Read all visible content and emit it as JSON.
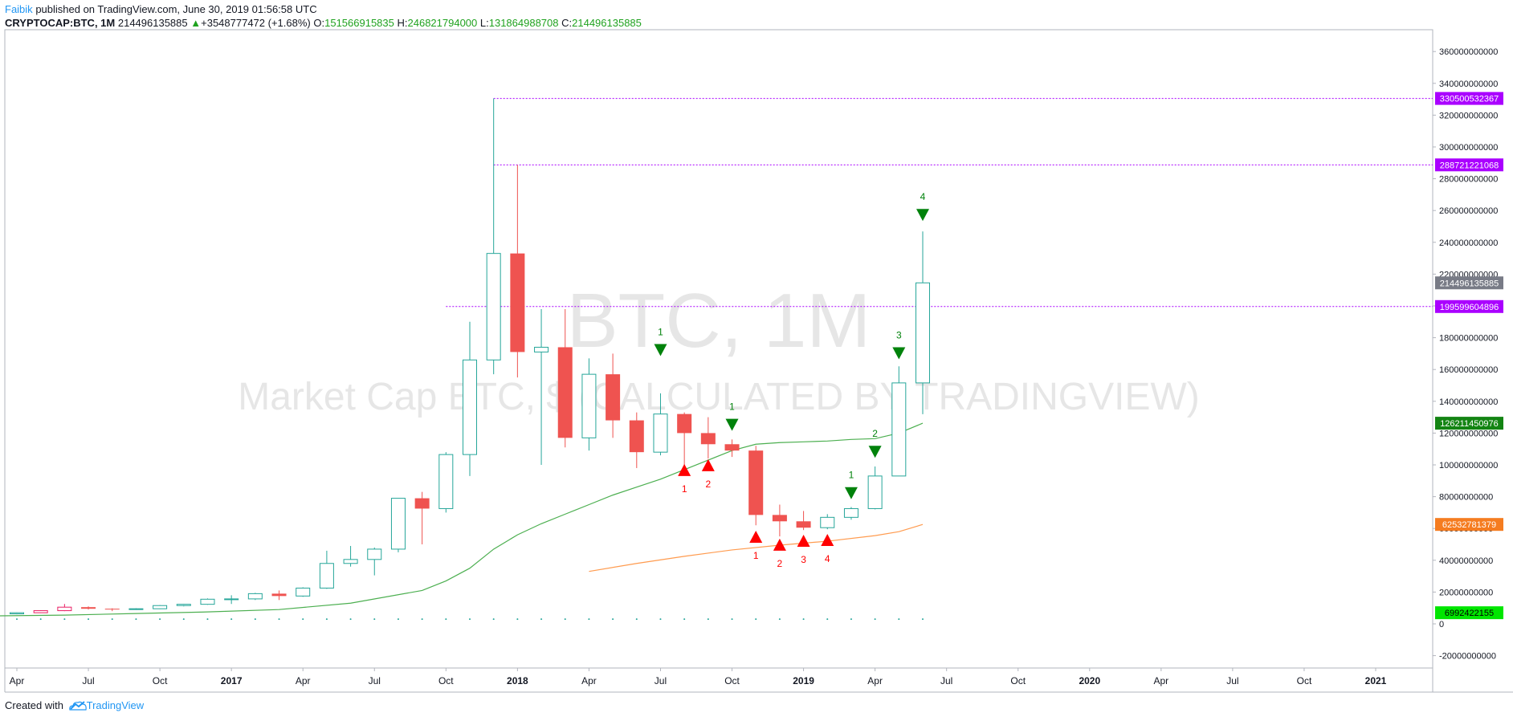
{
  "header": {
    "author": "Faibik",
    "published_text": "published on TradingView.com, June 30, 2019 01:56:58 UTC",
    "symbol": "CRYPTOCAP:BTC, 1M",
    "last": "214496135885",
    "change_arrow": "▲",
    "change": "+3548777472 (+1.68%)",
    "open_label": "O:",
    "open": "151566915835",
    "high_label": "H:",
    "high": "246821794000",
    "low_label": "L:",
    "low": "131864988708",
    "close_label": "C:",
    "close": "214496135885"
  },
  "footer": {
    "created_with": "Created with",
    "brand": "TradingView",
    "logo_icon": "tradingview-cloud-icon"
  },
  "chart_data": {
    "type": "candlestick",
    "watermark_symbol": "BTC, 1M",
    "watermark_description": "Market Cap BTC, $ (CALCULATED BY TRADINGVIEW)",
    "interval": "1M",
    "ylim": [
      -20000000000,
      360000000000
    ],
    "y_ticks": [
      -20000000000,
      0,
      20000000000,
      40000000000,
      60000000000,
      80000000000,
      100000000000,
      120000000000,
      140000000000,
      160000000000,
      180000000000,
      200000000000,
      220000000000,
      240000000000,
      260000000000,
      280000000000,
      300000000000,
      320000000000,
      340000000000,
      360000000000
    ],
    "y_tick_labels": [
      "-20000000000",
      "0",
      "20000000000",
      "40000000000",
      "60000000000",
      "80000000000",
      "100000000000",
      "120000000000",
      "140000000000",
      "160000000000",
      "180000000000",
      "200000000000",
      "220000000000",
      "240000000000",
      "260000000000",
      "280000000000",
      "300000000000",
      "320000000000",
      "340000000000",
      "360000000000"
    ],
    "x_ticks": [
      {
        "date": "2016-04",
        "label": "Apr",
        "bold": false
      },
      {
        "date": "2016-07",
        "label": "Jul",
        "bold": false
      },
      {
        "date": "2016-10",
        "label": "Oct",
        "bold": false
      },
      {
        "date": "2017-01",
        "label": "2017",
        "bold": true
      },
      {
        "date": "2017-04",
        "label": "Apr",
        "bold": false
      },
      {
        "date": "2017-07",
        "label": "Jul",
        "bold": false
      },
      {
        "date": "2017-10",
        "label": "Oct",
        "bold": false
      },
      {
        "date": "2018-01",
        "label": "2018",
        "bold": true
      },
      {
        "date": "2018-04",
        "label": "Apr",
        "bold": false
      },
      {
        "date": "2018-07",
        "label": "Jul",
        "bold": false
      },
      {
        "date": "2018-10",
        "label": "Oct",
        "bold": false
      },
      {
        "date": "2019-01",
        "label": "2019",
        "bold": true
      },
      {
        "date": "2019-04",
        "label": "Apr",
        "bold": false
      },
      {
        "date": "2019-07",
        "label": "Jul",
        "bold": false
      },
      {
        "date": "2019-10",
        "label": "Oct",
        "bold": false
      },
      {
        "date": "2020-01",
        "label": "2020",
        "bold": true
      },
      {
        "date": "2020-04",
        "label": "Apr",
        "bold": false
      },
      {
        "date": "2020-07",
        "label": "Jul",
        "bold": false
      },
      {
        "date": "2020-10",
        "label": "Oct",
        "bold": false
      },
      {
        "date": "2021-01",
        "label": "2021",
        "bold": true
      }
    ],
    "x_range": [
      "2016-03",
      "2021-06"
    ],
    "candles": [
      {
        "date": "2016-04",
        "o": 6300000000,
        "h": 7200000000,
        "l": 6000000000,
        "c": 7000000000
      },
      {
        "date": "2016-05",
        "o": 7000000000,
        "h": 8500000000,
        "l": 6800000000,
        "c": 8300000000
      },
      {
        "date": "2016-06",
        "o": 8300000000,
        "h": 12500000000,
        "l": 8000000000,
        "c": 10500000000
      },
      {
        "date": "2016-07",
        "o": 10500000000,
        "h": 11000000000,
        "l": 9000000000,
        "c": 9500000000
      },
      {
        "date": "2016-08",
        "o": 9500000000,
        "h": 9800000000,
        "l": 8000000000,
        "c": 9000000000
      },
      {
        "date": "2016-09",
        "o": 9000000000,
        "h": 9800000000,
        "l": 8800000000,
        "c": 9500000000
      },
      {
        "date": "2016-10",
        "o": 9500000000,
        "h": 11800000000,
        "l": 9300000000,
        "c": 11500000000
      },
      {
        "date": "2016-11",
        "o": 11500000000,
        "h": 12500000000,
        "l": 11000000000,
        "c": 12300000000
      },
      {
        "date": "2016-12",
        "o": 12300000000,
        "h": 16000000000,
        "l": 12000000000,
        "c": 15500000000
      },
      {
        "date": "2017-01",
        "o": 15500000000,
        "h": 18000000000,
        "l": 12500000000,
        "c": 15700000000
      },
      {
        "date": "2017-02",
        "o": 15700000000,
        "h": 19500000000,
        "l": 15000000000,
        "c": 19000000000
      },
      {
        "date": "2017-03",
        "o": 19000000000,
        "h": 21000000000,
        "l": 15000000000,
        "c": 17500000000
      },
      {
        "date": "2017-04",
        "o": 17500000000,
        "h": 23000000000,
        "l": 17000000000,
        "c": 22500000000
      },
      {
        "date": "2017-05",
        "o": 22500000000,
        "h": 46000000000,
        "l": 22000000000,
        "c": 38000000000
      },
      {
        "date": "2017-06",
        "o": 38000000000,
        "h": 49000000000,
        "l": 36000000000,
        "c": 40500000000
      },
      {
        "date": "2017-07",
        "o": 40500000000,
        "h": 48000000000,
        "l": 30500000000,
        "c": 47000000000
      },
      {
        "date": "2017-08",
        "o": 47000000000,
        "h": 79000000000,
        "l": 45000000000,
        "c": 79000000000
      },
      {
        "date": "2017-09",
        "o": 79000000000,
        "h": 83000000000,
        "l": 50000000000,
        "c": 72500000000
      },
      {
        "date": "2017-10",
        "o": 72500000000,
        "h": 108000000000,
        "l": 70000000000,
        "c": 106500000000
      },
      {
        "date": "2017-11",
        "o": 106500000000,
        "h": 190000000000,
        "l": 93000000000,
        "c": 166000000000
      },
      {
        "date": "2017-12",
        "o": 166000000000,
        "h": 330500532367,
        "l": 157000000000,
        "c": 233000000000
      },
      {
        "date": "2018-01",
        "o": 233000000000,
        "h": 288721221068,
        "l": 155000000000,
        "c": 171000000000
      },
      {
        "date": "2018-02",
        "o": 171000000000,
        "h": 198000000000,
        "l": 100000000000,
        "c": 174000000000
      },
      {
        "date": "2018-03",
        "o": 174000000000,
        "h": 198000000000,
        "l": 111000000000,
        "c": 117000000000
      },
      {
        "date": "2018-04",
        "o": 117000000000,
        "h": 167000000000,
        "l": 109000000000,
        "c": 157000000000
      },
      {
        "date": "2018-05",
        "o": 157000000000,
        "h": 170000000000,
        "l": 117000000000,
        "c": 128000000000
      },
      {
        "date": "2018-06",
        "o": 128000000000,
        "h": 133000000000,
        "l": 98000000000,
        "c": 108000000000
      },
      {
        "date": "2018-07",
        "o": 108000000000,
        "h": 145000000000,
        "l": 106000000000,
        "c": 132000000000
      },
      {
        "date": "2018-08",
        "o": 132000000000,
        "h": 133000000000,
        "l": 100000000000,
        "c": 120000000000
      },
      {
        "date": "2018-09",
        "o": 120000000000,
        "h": 130000000000,
        "l": 104000000000,
        "c": 113000000000
      },
      {
        "date": "2018-10",
        "o": 113000000000,
        "h": 116000000000,
        "l": 105000000000,
        "c": 109000000000
      },
      {
        "date": "2018-11",
        "o": 109000000000,
        "h": 112000000000,
        "l": 62000000000,
        "c": 68500000000
      },
      {
        "date": "2018-12",
        "o": 68500000000,
        "h": 75000000000,
        "l": 55000000000,
        "c": 64500000000
      },
      {
        "date": "2019-01",
        "o": 64500000000,
        "h": 71000000000,
        "l": 59000000000,
        "c": 60500000000
      },
      {
        "date": "2019-02",
        "o": 60500000000,
        "h": 69000000000,
        "l": 59500000000,
        "c": 67000000000
      },
      {
        "date": "2019-03",
        "o": 67000000000,
        "h": 73500000000,
        "l": 65500000000,
        "c": 72500000000
      },
      {
        "date": "2019-04",
        "o": 72500000000,
        "h": 99000000000,
        "l": 72000000000,
        "c": 93000000000
      },
      {
        "date": "2019-05",
        "o": 93000000000,
        "h": 162000000000,
        "l": 93000000000,
        "c": 151566915835
      },
      {
        "date": "2019-06",
        "o": 151566915835,
        "h": 246821794000,
        "l": 131864988708,
        "c": 214496135885
      }
    ],
    "ma_green": {
      "name": "",
      "color": "#4caf50",
      "points": [
        [
          "2016-03",
          5000000000
        ],
        [
          "2016-06",
          5500000000
        ],
        [
          "2016-09",
          6500000000
        ],
        [
          "2016-12",
          7500000000
        ],
        [
          "2017-03",
          9000000000
        ],
        [
          "2017-06",
          13000000000
        ],
        [
          "2017-09",
          21000000000
        ],
        [
          "2017-10",
          27000000000
        ],
        [
          "2017-11",
          35000000000
        ],
        [
          "2017-12",
          47000000000
        ],
        [
          "2018-01",
          56000000000
        ],
        [
          "2018-02",
          63000000000
        ],
        [
          "2018-03",
          69000000000
        ],
        [
          "2018-04",
          75000000000
        ],
        [
          "2018-05",
          81000000000
        ],
        [
          "2018-06",
          86000000000
        ],
        [
          "2018-07",
          91000000000
        ],
        [
          "2018-08",
          97000000000
        ],
        [
          "2018-09",
          103000000000
        ],
        [
          "2018-10",
          109000000000
        ],
        [
          "2018-11",
          113000000000
        ],
        [
          "2018-12",
          114000000000
        ],
        [
          "2019-01",
          114500000000
        ],
        [
          "2019-02",
          115000000000
        ],
        [
          "2019-03",
          116000000000
        ],
        [
          "2019-04",
          116500000000
        ],
        [
          "2019-05",
          120000000000
        ],
        [
          "2019-06",
          126211450976
        ]
      ]
    },
    "ma_orange": {
      "name": "",
      "color": "#ff9b4f",
      "points": [
        [
          "2018-04",
          33000000000
        ],
        [
          "2018-06",
          38000000000
        ],
        [
          "2018-08",
          42500000000
        ],
        [
          "2018-10",
          46500000000
        ],
        [
          "2018-12",
          49500000000
        ],
        [
          "2019-02",
          52000000000
        ],
        [
          "2019-04",
          55500000000
        ],
        [
          "2019-05",
          58000000000
        ],
        [
          "2019-06",
          62532781379
        ]
      ]
    },
    "volume_dots": {
      "color": "#26a69a",
      "value": 6992422155,
      "from": "2016-04",
      "to": "2019-06"
    },
    "horizontal_lines": [
      {
        "value": 330500532367,
        "from": "2017-12",
        "color": "#aa00ff",
        "label": "330500532367"
      },
      {
        "value": 288721221068,
        "from": "2017-12",
        "color": "#aa00ff",
        "label": "288721221068"
      },
      {
        "value": 199599604896,
        "from": "2017-10",
        "color": "#aa00ff",
        "label": "199599604896"
      }
    ],
    "price_labels": [
      {
        "value": 330500532367,
        "text": "330500532367",
        "bg": "#aa00ff",
        "fg": "#ffffff"
      },
      {
        "value": 288721221068,
        "text": "288721221068",
        "bg": "#aa00ff",
        "fg": "#ffffff"
      },
      {
        "value": 214496135885,
        "text": "214496135885",
        "bg": "#787b86",
        "fg": "#ffffff"
      },
      {
        "value": 199599604896,
        "text": "199599604896",
        "bg": "#aa00ff",
        "fg": "#ffffff"
      },
      {
        "value": 126211450976,
        "text": "126211450976",
        "bg": "#138413",
        "fg": "#ffffff"
      },
      {
        "value": 62532781379,
        "text": "62532781379",
        "bg": "#f57c20",
        "fg": "#ffffff"
      },
      {
        "value": 6992422155,
        "text": "6992422155",
        "bg": "#00e600",
        "fg": "#000000"
      }
    ],
    "sell_markers": [
      {
        "date": "2018-07",
        "value": 176000000000,
        "label": "1"
      },
      {
        "date": "2018-10",
        "value": 129000000000,
        "label": "1"
      },
      {
        "date": "2019-03",
        "value": 86000000000,
        "label": "1"
      },
      {
        "date": "2019-04",
        "value": 112000000000,
        "label": "2"
      },
      {
        "date": "2019-05",
        "value": 174000000000,
        "label": "3"
      },
      {
        "date": "2019-06",
        "value": 261000000000,
        "label": "4"
      }
    ],
    "buy_markers": [
      {
        "date": "2018-08",
        "value": 93000000000,
        "label": "1"
      },
      {
        "date": "2018-09",
        "value": 96000000000,
        "label": "2"
      },
      {
        "date": "2018-11",
        "value": 51000000000,
        "label": "1"
      },
      {
        "date": "2018-12",
        "value": 46000000000,
        "label": "2"
      },
      {
        "date": "2019-01",
        "value": 48500000000,
        "label": "3"
      },
      {
        "date": "2019-02",
        "value": 49000000000,
        "label": "4"
      }
    ],
    "colors": {
      "up": "#26a69a",
      "down": "#ef5350",
      "up_early": "#e91e63",
      "sell_marker": "#00820b",
      "buy_marker": "#ff0000",
      "axis_text": "#131722",
      "watermark": "#e6e6e6"
    }
  }
}
